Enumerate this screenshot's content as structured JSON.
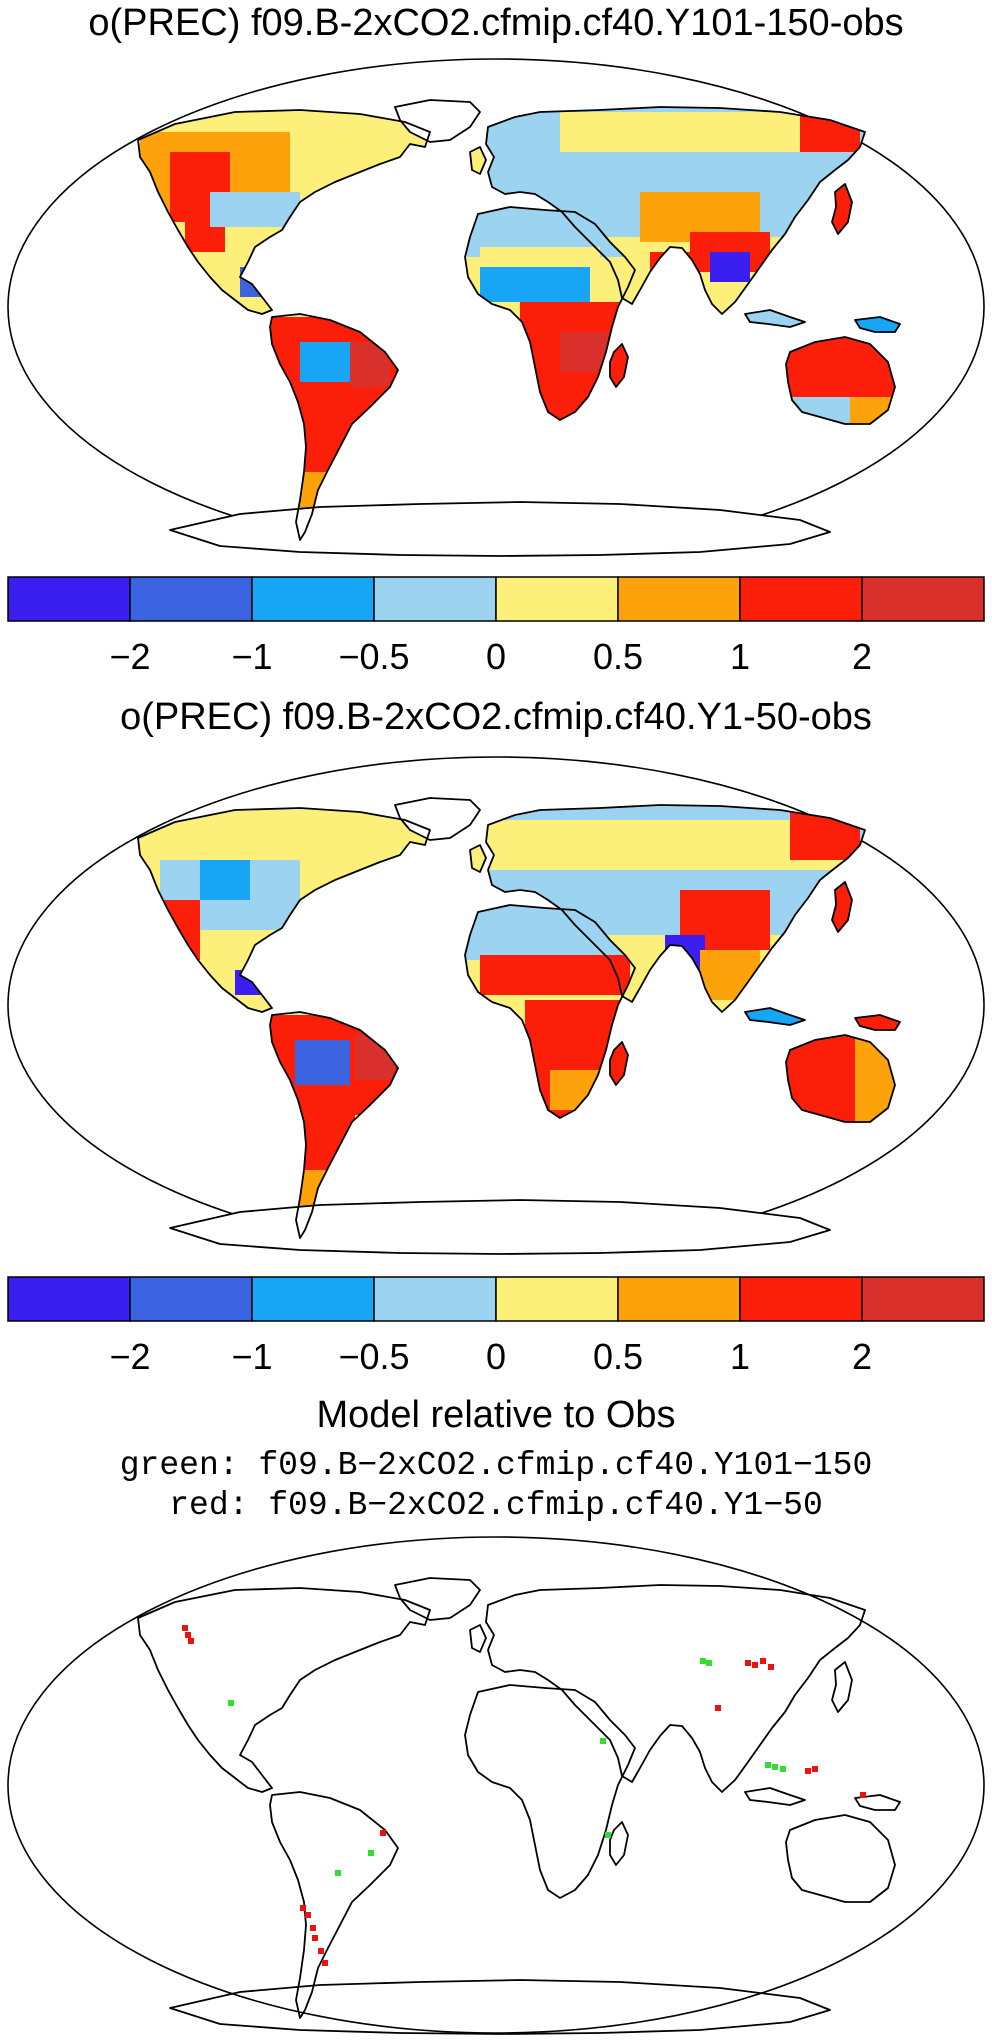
{
  "panels": [
    {
      "title": "o(PREC) f09.B-2xCO2.cfmip.cf40.Y101-150-obs"
    },
    {
      "title": "o(PREC) f09.B-2xCO2.cfmip.cf40.Y1-50-obs"
    }
  ],
  "colorbar": {
    "colors": [
      "#3a1ff0",
      "#3b63e0",
      "#17a6f5",
      "#9bd3f0",
      "#fdf07a",
      "#fda20a",
      "#fb1f0a",
      "#d9302c"
    ],
    "tick_labels": [
      "−2",
      "−1",
      "−0.5",
      "0",
      "0.5",
      "1",
      "2"
    ]
  },
  "comparison": {
    "title": "Model relative to Obs",
    "legend_green": "green: f09.B−2xCO2.cfmip.cf40.Y101−150",
    "legend_red": "red: f09.B−2xCO2.cfmip.cf40.Y1−50",
    "colors": {
      "green": "#33dd33",
      "red": "#ee1111"
    }
  }
}
